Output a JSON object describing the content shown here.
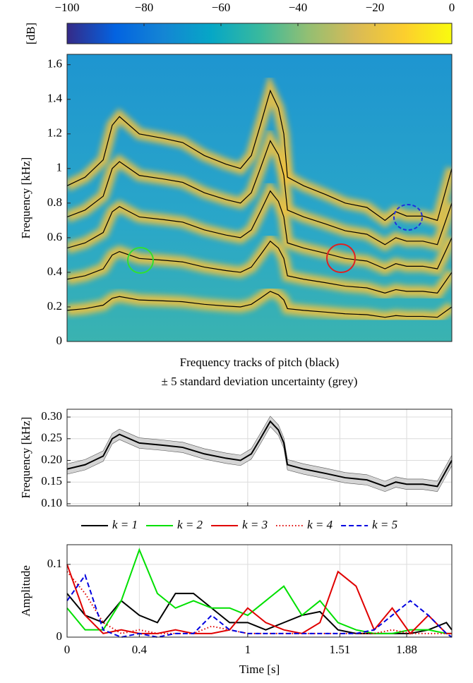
{
  "chart_data": [
    {
      "type": "spectrogram",
      "ylabel": "Frequency [kHz]",
      "colorbar": {
        "label": "[dB]",
        "lim": [
          -100,
          0
        ],
        "ticks": [
          {
            "value": -100,
            "label": "−100"
          },
          {
            "value": -80,
            "label": "−80"
          },
          {
            "value": -60,
            "label": "−60"
          },
          {
            "value": -40,
            "label": "−40"
          },
          {
            "value": -20,
            "label": "−20"
          },
          0
        ],
        "colors": [
          "#352a87",
          "#0363e1",
          "#1485d4",
          "#06a7c6",
          "#38b99e",
          "#92bf73",
          "#d9ba56",
          "#fcce2e",
          "#f9fb0e"
        ]
      },
      "xlim": [
        0,
        2.13
      ],
      "ylim": [
        0,
        1.66
      ],
      "yticks": [
        0,
        0.2,
        0.4,
        0.6,
        0.8,
        1,
        1.2,
        1.4,
        1.6
      ],
      "x": [
        0,
        0.1,
        0.2,
        0.25,
        0.29,
        0.4,
        0.53,
        0.64,
        0.76,
        0.88,
        0.96,
        1.02,
        1.07,
        1.125,
        1.17,
        1.2,
        1.22,
        1.31,
        1.43,
        1.54,
        1.66,
        1.76,
        1.82,
        1.88,
        1.97,
        2.05,
        2.13
      ],
      "series": [
        {
          "color": "#000000",
          "values": [
            0.18,
            0.19,
            0.21,
            0.25,
            0.26,
            0.24,
            0.235,
            0.23,
            0.215,
            0.205,
            0.2,
            0.215,
            0.25,
            0.29,
            0.27,
            0.24,
            0.19,
            0.18,
            0.17,
            0.16,
            0.155,
            0.14,
            0.15,
            0.145,
            0.145,
            0.14,
            0.2
          ]
        },
        {
          "color": "#000000",
          "values": [
            0.36,
            0.38,
            0.42,
            0.5,
            0.52,
            0.48,
            0.47,
            0.46,
            0.43,
            0.41,
            0.4,
            0.43,
            0.5,
            0.58,
            0.54,
            0.48,
            0.38,
            0.36,
            0.34,
            0.32,
            0.31,
            0.28,
            0.3,
            0.29,
            0.29,
            0.28,
            0.4
          ]
        },
        {
          "color": "#000000",
          "values": [
            0.54,
            0.57,
            0.63,
            0.75,
            0.78,
            0.72,
            0.705,
            0.69,
            0.645,
            0.615,
            0.6,
            0.645,
            0.75,
            0.87,
            0.81,
            0.72,
            0.57,
            0.54,
            0.51,
            0.48,
            0.465,
            0.42,
            0.45,
            0.435,
            0.435,
            0.42,
            0.6
          ]
        },
        {
          "color": "#000000",
          "values": [
            0.72,
            0.76,
            0.84,
            1.0,
            1.04,
            0.96,
            0.94,
            0.92,
            0.86,
            0.82,
            0.8,
            0.86,
            1.0,
            1.16,
            1.08,
            0.96,
            0.76,
            0.72,
            0.68,
            0.64,
            0.62,
            0.56,
            0.6,
            0.58,
            0.58,
            0.56,
            0.8
          ]
        },
        {
          "color": "#000000",
          "values": [
            0.9,
            0.95,
            1.05,
            1.25,
            1.3,
            1.2,
            1.175,
            1.15,
            1.075,
            1.025,
            1.0,
            1.075,
            1.25,
            1.45,
            1.35,
            1.2,
            0.95,
            0.9,
            0.85,
            0.8,
            0.775,
            0.7,
            0.75,
            0.725,
            0.725,
            0.7,
            1.0
          ]
        }
      ]
    },
    {
      "type": "band-line",
      "title": "Frequency tracks of pitch (black)",
      "subtitle": "± 5 standard deviation uncertainty (grey)",
      "ylabel": "Frequency [kHz]",
      "grid": true,
      "xlim": [
        0,
        2.13
      ],
      "xticks": [
        0,
        0.4,
        1,
        1.51,
        1.88
      ],
      "xticklabels": false,
      "ylim": [
        0.095,
        0.318
      ],
      "yticks": [
        {
          "value": 0.1,
          "label": "0.10"
        },
        0.15,
        {
          "value": 0.2,
          "label": "0.20"
        },
        0.25,
        {
          "value": 0.3,
          "label": "0.30"
        }
      ],
      "x": [
        0,
        0.1,
        0.2,
        0.25,
        0.29,
        0.4,
        0.53,
        0.64,
        0.76,
        0.88,
        0.96,
        1.02,
        1.07,
        1.125,
        1.17,
        1.2,
        1.22,
        1.31,
        1.43,
        1.54,
        1.66,
        1.76,
        1.82,
        1.88,
        1.97,
        2.05,
        2.13
      ],
      "band": {
        "color": "#d4d4d4",
        "upper": [
          0.192,
          0.202,
          0.222,
          0.262,
          0.272,
          0.252,
          0.247,
          0.242,
          0.227,
          0.217,
          0.212,
          0.227,
          0.262,
          0.302,
          0.282,
          0.252,
          0.202,
          0.192,
          0.182,
          0.172,
          0.167,
          0.152,
          0.162,
          0.157,
          0.157,
          0.152,
          0.212
        ],
        "lower": [
          0.168,
          0.178,
          0.198,
          0.238,
          0.248,
          0.228,
          0.223,
          0.218,
          0.203,
          0.193,
          0.188,
          0.203,
          0.238,
          0.278,
          0.258,
          0.228,
          0.178,
          0.168,
          0.158,
          0.148,
          0.143,
          0.128,
          0.138,
          0.133,
          0.133,
          0.128,
          0.188
        ]
      },
      "series": [
        {
          "color": "#000000",
          "values": [
            0.18,
            0.19,
            0.21,
            0.25,
            0.26,
            0.24,
            0.235,
            0.23,
            0.215,
            0.205,
            0.2,
            0.215,
            0.25,
            0.29,
            0.27,
            0.24,
            0.19,
            0.18,
            0.17,
            0.16,
            0.155,
            0.14,
            0.15,
            0.145,
            0.145,
            0.14,
            0.2
          ]
        }
      ]
    },
    {
      "type": "line",
      "ylabel": "Amplitude",
      "xlabel": "Time [s]",
      "grid": true,
      "legend": "top",
      "xlim": [
        0,
        2.13
      ],
      "xticks": [
        0,
        0.4,
        1,
        1.51,
        1.88
      ],
      "xticklabels": true,
      "ylim": [
        0,
        0.127
      ],
      "yticks": [
        0,
        0.1
      ],
      "x": [
        0,
        0.1,
        0.2,
        0.3,
        0.4,
        0.5,
        0.6,
        0.7,
        0.8,
        0.9,
        1.0,
        1.1,
        1.2,
        1.3,
        1.4,
        1.5,
        1.6,
        1.7,
        1.8,
        1.9,
        2.0,
        2.1,
        2.13
      ],
      "series": [
        {
          "name": "k = 1",
          "color": "#000000",
          "dash": "solid",
          "values": [
            0.06,
            0.03,
            0.02,
            0.05,
            0.03,
            0.02,
            0.06,
            0.06,
            0.04,
            0.02,
            0.02,
            0.01,
            0.02,
            0.03,
            0.035,
            0.01,
            0.005,
            0.005,
            0.005,
            0.005,
            0.01,
            0.02,
            0.01
          ]
        },
        {
          "name": "k = 2",
          "color": "#00e000",
          "dash": "solid",
          "values": [
            0.04,
            0.01,
            0.01,
            0.05,
            0.12,
            0.06,
            0.04,
            0.05,
            0.04,
            0.04,
            0.03,
            0.05,
            0.07,
            0.03,
            0.05,
            0.02,
            0.01,
            0.005,
            0.005,
            0.01,
            0.01,
            0.005,
            0.005
          ]
        },
        {
          "name": "k = 3",
          "color": "#e00000",
          "dash": "solid",
          "values": [
            0.1,
            0.03,
            0.005,
            0.01,
            0.005,
            0.005,
            0.01,
            0.005,
            0.005,
            0.01,
            0.04,
            0.02,
            0.01,
            0.005,
            0.02,
            0.09,
            0.07,
            0.01,
            0.04,
            0.005,
            0.03,
            0.005,
            0.005
          ]
        },
        {
          "name": "k = 4",
          "color": "#e00000",
          "dash": "dotted",
          "values": [
            0.09,
            0.06,
            0.02,
            0.005,
            0.01,
            0.005,
            0.005,
            0.005,
            0.015,
            0.01,
            0.005,
            0.005,
            0.005,
            0.005,
            0.005,
            0.005,
            0.005,
            0.005,
            0.01,
            0.005,
            0.005,
            0.005,
            0.005
          ]
        },
        {
          "name": "k = 5",
          "color": "#0000e0",
          "dash": "dashed",
          "values": [
            0.05,
            0.085,
            0.01,
            0,
            0.005,
            0,
            0.005,
            0.005,
            0.03,
            0.01,
            0.005,
            0.005,
            0.005,
            0.005,
            0.005,
            0.005,
            0.005,
            0.01,
            0.03,
            0.05,
            0.03,
            0.005,
            0
          ]
        }
      ]
    }
  ]
}
